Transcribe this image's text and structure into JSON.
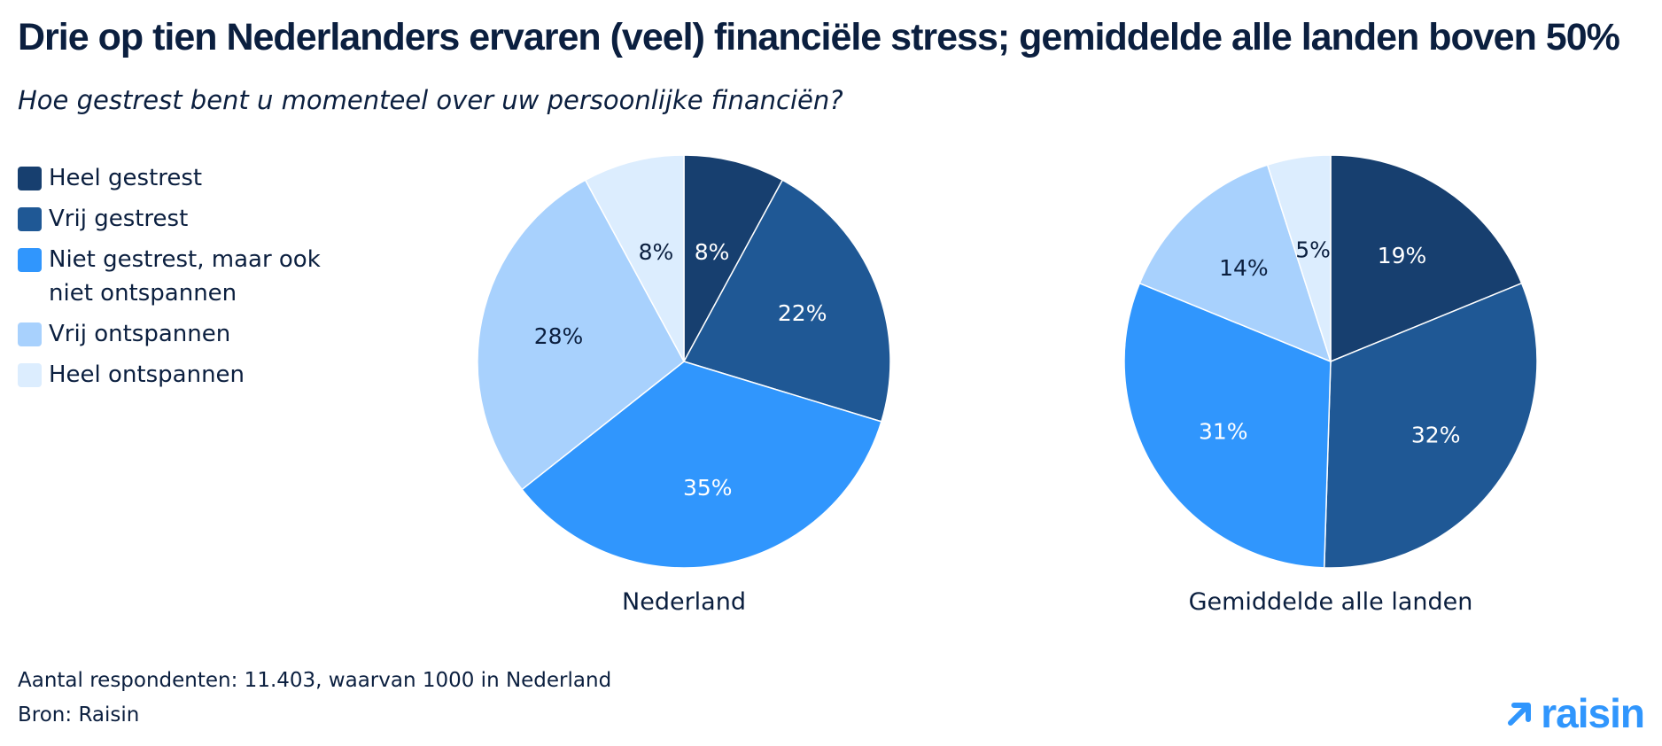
{
  "title": "Drie op tien Nederlanders ervaren (veel) financiële stress; gemiddelde alle landen boven 50%",
  "subtitle": "Hoe gestrest bent u momenteel over uw persoonlijke financiën?",
  "legend": [
    {
      "label": "Heel gestrest",
      "color": "#173f6f"
    },
    {
      "label": "Vrij gestrest",
      "color": "#1f5895"
    },
    {
      "label": "Niet gestrest, maar ook niet ontspannen",
      "color": "#3096fd"
    },
    {
      "label": "Vrij ontspannen",
      "color": "#a8d1fd"
    },
    {
      "label": "Heel ontspannen",
      "color": "#dcedfe"
    }
  ],
  "chart_data": [
    {
      "type": "pie",
      "name": "Nederland",
      "categories": [
        "Heel gestrest",
        "Vrij gestrest",
        "Niet gestrest, maar ook niet ontspannen",
        "Vrij ontspannen",
        "Heel ontspannen"
      ],
      "values": [
        8,
        22,
        35,
        28,
        8
      ],
      "labels": [
        "8%",
        "22%",
        "35%",
        "28%",
        "8%"
      ],
      "colors": [
        "#173f6f",
        "#1f5895",
        "#3096fd",
        "#a8d1fd",
        "#dcedfe"
      ],
      "start_angle_deg": 0,
      "direction": "clockwise"
    },
    {
      "type": "pie",
      "name": "Gemiddelde alle landen",
      "categories": [
        "Heel gestrest",
        "Vrij gestrest",
        "Niet gestrest, maar ook niet ontspannen",
        "Vrij ontspannen",
        "Heel ontspannen"
      ],
      "values": [
        19,
        32,
        31,
        14,
        5
      ],
      "labels": [
        "19%",
        "32%",
        "31%",
        "14%",
        "5%"
      ],
      "colors": [
        "#173f6f",
        "#1f5895",
        "#3096fd",
        "#a8d1fd",
        "#dcedfe"
      ],
      "start_angle_deg": 0,
      "direction": "clockwise"
    }
  ],
  "footer": {
    "respondents": "Aantal respondenten: 11.403, waarvan 1000 in Nederland",
    "source": "Bron: Raisin"
  },
  "logo": {
    "text": "raisin",
    "color": "#3096fd",
    "icon": "arrow-up-right-icon"
  }
}
